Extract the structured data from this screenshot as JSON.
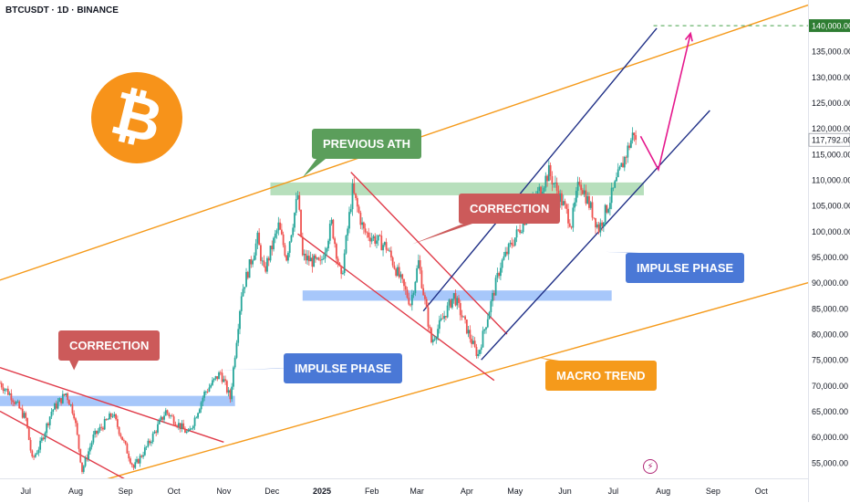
{
  "header": {
    "symbol": "BTCUSDT · 1D · BINANCE"
  },
  "chart_data": {
    "type": "candlestick",
    "grid": false,
    "y_axis": {
      "range": [
        50000,
        142500
      ],
      "ticks": [
        55000,
        60000,
        65000,
        70000,
        75000,
        80000,
        85000,
        90000,
        95000,
        100000,
        105000,
        110000,
        115000,
        120000,
        125000,
        130000,
        135000
      ],
      "tick_labels": [
        "55,000.00",
        "60,000.00",
        "65,000.00",
        "70,000.00",
        "75,000.00",
        "80,000.00",
        "85,000.00",
        "90,000.00",
        "95,000.00",
        "100,000.00",
        "105,000.00",
        "110,000.00",
        "115,000.00",
        "120,000.00",
        "125,000.00",
        "130,000.00",
        "135,000.00"
      ],
      "scale": "linear",
      "side": "right"
    },
    "x_axis": {
      "tick_labels": [
        "Jul",
        "Aug",
        "Sep",
        "Oct",
        "Nov",
        "Dec",
        "2025",
        "Feb",
        "Mar",
        "Apr",
        "May",
        "Jun",
        "Jul",
        "Aug",
        "Sep",
        "Oct"
      ],
      "range": [
        "2024-06-15",
        "2025-10-30"
      ]
    },
    "series": [
      {
        "close_path": [
          [
            "2024-06-15",
            70500
          ],
          [
            "2024-06-22",
            68000
          ],
          [
            "2024-07-01",
            63500
          ],
          [
            "2024-07-05",
            55500
          ],
          [
            "2024-07-10",
            58500
          ],
          [
            "2024-07-17",
            65000
          ],
          [
            "2024-07-26",
            68500
          ],
          [
            "2024-07-31",
            64500
          ],
          [
            "2024-08-05",
            53500
          ],
          [
            "2024-08-12",
            60000
          ],
          [
            "2024-08-24",
            64500
          ],
          [
            "2024-09-06",
            54000
          ],
          [
            "2024-09-15",
            58500
          ],
          [
            "2024-09-26",
            65000
          ],
          [
            "2024-10-10",
            60500
          ],
          [
            "2024-10-20",
            68500
          ],
          [
            "2024-10-30",
            72500
          ],
          [
            "2024-11-05",
            67500
          ],
          [
            "2024-11-12",
            88000
          ],
          [
            "2024-11-22",
            98500
          ],
          [
            "2024-11-26",
            92000
          ],
          [
            "2024-12-05",
            101000
          ],
          [
            "2024-12-10",
            95000
          ],
          [
            "2024-12-17",
            107000
          ],
          [
            "2024-12-20",
            95000
          ],
          [
            "2024-12-31",
            93500
          ],
          [
            "2025-01-07",
            101500
          ],
          [
            "2025-01-13",
            90500
          ],
          [
            "2025-01-20",
            108000
          ],
          [
            "2025-01-27",
            100000
          ],
          [
            "2025-02-10",
            97000
          ],
          [
            "2025-02-25",
            86000
          ],
          [
            "2025-03-02",
            94000
          ],
          [
            "2025-03-10",
            78500
          ],
          [
            "2025-03-24",
            87500
          ],
          [
            "2025-04-06",
            77000
          ],
          [
            "2025-04-08",
            76000
          ],
          [
            "2025-04-22",
            93500
          ],
          [
            "2025-05-08",
            103000
          ],
          [
            "2025-05-22",
            111500
          ],
          [
            "2025-06-05",
            101500
          ],
          [
            "2025-06-10",
            110000
          ],
          [
            "2025-06-22",
            100500
          ],
          [
            "2025-06-30",
            107000
          ],
          [
            "2025-07-10",
            116000
          ],
          [
            "2025-07-14",
            119500
          ],
          [
            "2025-07-15",
            117792
          ]
        ]
      }
    ],
    "last_price": 117792,
    "last_price_label": "117,792.00",
    "target_price": 140000,
    "target_price_label": "140,000.00",
    "zones": [
      {
        "price_low": 66000,
        "price_high": 68000,
        "from": "2024-06-15",
        "to": "2024-11-08",
        "color": "#8ab4f8"
      },
      {
        "price_low": 86500,
        "price_high": 88500,
        "from": "2024-12-20",
        "to": "2025-06-30",
        "color": "#8ab4f8"
      },
      {
        "price_low": 107000,
        "price_high": 109500,
        "from": "2024-11-30",
        "to": "2025-07-20",
        "color": "#9fd4a6"
      }
    ],
    "trendlines": [
      {
        "name": "macro-trend-upper",
        "color": "#f59a1b",
        "points": [
          [
            "2024-06-15",
            90500
          ],
          [
            "2025-10-30",
            144000
          ]
        ]
      },
      {
        "name": "macro-trend-lower",
        "color": "#f59a1b",
        "points": [
          [
            "2024-06-15",
            46000
          ],
          [
            "2025-10-30",
            90000
          ]
        ]
      },
      {
        "name": "correction-1-upper",
        "color": "#e03a48",
        "points": [
          [
            "2024-06-15",
            73500
          ],
          [
            "2024-11-01",
            59000
          ]
        ]
      },
      {
        "name": "correction-1-lower",
        "color": "#e03a48",
        "points": [
          [
            "2024-06-15",
            65000
          ],
          [
            "2024-09-20",
            48500
          ]
        ]
      },
      {
        "name": "correction-2-upper",
        "color": "#e03a48",
        "points": [
          [
            "2025-01-19",
            111500
          ],
          [
            "2025-04-26",
            80000
          ]
        ]
      },
      {
        "name": "correction-2-lower",
        "color": "#e03a48",
        "points": [
          [
            "2024-12-17",
            99500
          ],
          [
            "2025-04-18",
            71000
          ]
        ]
      },
      {
        "name": "impulse-upper",
        "color": "#1f2f86",
        "points": [
          [
            "2025-03-05",
            84500
          ],
          [
            "2025-07-28",
            139500
          ]
        ]
      },
      {
        "name": "impulse-lower",
        "color": "#1f2f86",
        "points": [
          [
            "2025-04-10",
            75000
          ],
          [
            "2025-08-30",
            123500
          ]
        ]
      }
    ],
    "projection": {
      "color": "#e5178c",
      "points": [
        [
          "2025-07-18",
          118500
        ],
        [
          "2025-07-29",
          112000
        ],
        [
          "2025-08-18",
          138500
        ]
      ]
    },
    "annotations": [
      {
        "text": "CORRECTION",
        "color": "#cc5a5a",
        "pointer": [
          "2024-07-31",
          73000
        ]
      },
      {
        "text": "IMPULSE PHASE",
        "color": "#4a78d6",
        "pointer": [
          "2024-10-30",
          73000
        ]
      },
      {
        "text": "PREVIOUS ATH",
        "color": "#5b9e5b",
        "pointer": [
          "2024-12-20",
          110500
        ]
      },
      {
        "text": "CORRECTION",
        "color": "#cc5a5a",
        "pointer": [
          "2025-02-26",
          97500
        ]
      },
      {
        "text": "IMPULSE PHASE",
        "color": "#4a78d6",
        "pointer": [
          "2025-06-26",
          96000
        ]
      },
      {
        "text": "MACRO TREND",
        "color": "#f59a1b",
        "pointer": [
          "2025-05-15",
          75500
        ]
      }
    ]
  },
  "colors": {
    "up": "#26a69a",
    "down": "#ef5350",
    "axis_text": "#131722",
    "last_price_bg": "#ffffff",
    "target_bg": "#2e7d32",
    "target_line": "#43a047"
  },
  "icons": {
    "logo": "bitcoin-logo",
    "alert": "lightning-bolt-icon"
  }
}
